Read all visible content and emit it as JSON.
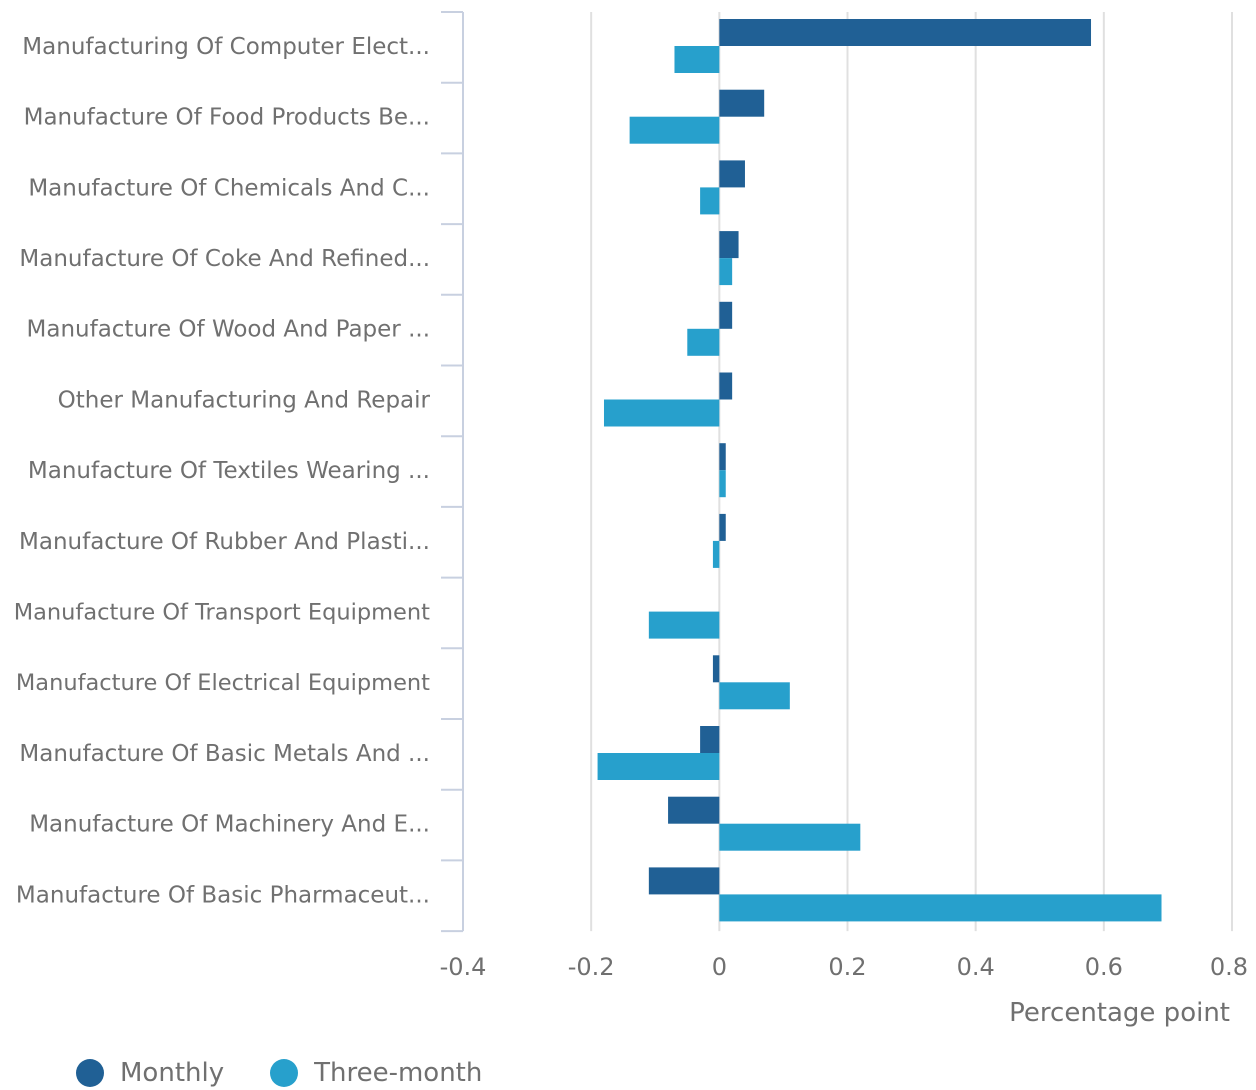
{
  "colors": {
    "monthly": "#206095",
    "three_month": "#27a0cc",
    "grid": "#e0e0e0",
    "axis": "#c8d0e0",
    "text": "#707070"
  },
  "chart_data": {
    "type": "bar",
    "orientation": "horizontal",
    "categories": [
      "Manufacturing Of Computer Elect...",
      "Manufacture Of Food Products Be...",
      "Manufacture Of Chemicals And C...",
      "Manufacture Of Coke And Refined...",
      "Manufacture Of Wood And Paper ...",
      "Other Manufacturing And Repair",
      "Manufacture Of Textiles Wearing ...",
      "Manufacture Of Rubber And Plasti...",
      "Manufacture Of Transport Equipment",
      "Manufacture Of Electrical Equipment",
      "Manufacture Of Basic Metals And ...",
      "Manufacture Of Machinery And E...",
      "Manufacture Of Basic Pharmaceut..."
    ],
    "series": [
      {
        "name": "Monthly",
        "values": [
          0.58,
          0.07,
          0.04,
          0.03,
          0.02,
          0.02,
          0.01,
          0.01,
          0.0,
          -0.01,
          -0.03,
          -0.08,
          -0.11
        ]
      },
      {
        "name": "Three-month",
        "values": [
          -0.07,
          -0.14,
          -0.03,
          0.02,
          -0.05,
          -0.18,
          0.01,
          -0.01,
          -0.11,
          0.11,
          -0.19,
          0.22,
          0.69
        ]
      }
    ],
    "xlabel": "Percentage point",
    "ylabel": "",
    "xlim": [
      -0.4,
      0.8
    ],
    "xticks": [
      -0.4,
      -0.2,
      0,
      0.2,
      0.4,
      0.6,
      0.8
    ],
    "xtick_labels": [
      "-0.4",
      "-0.2",
      "0",
      "0.2",
      "0.4",
      "0.6",
      "0.8"
    ],
    "grid": true,
    "legend_position": "bottom-left"
  }
}
